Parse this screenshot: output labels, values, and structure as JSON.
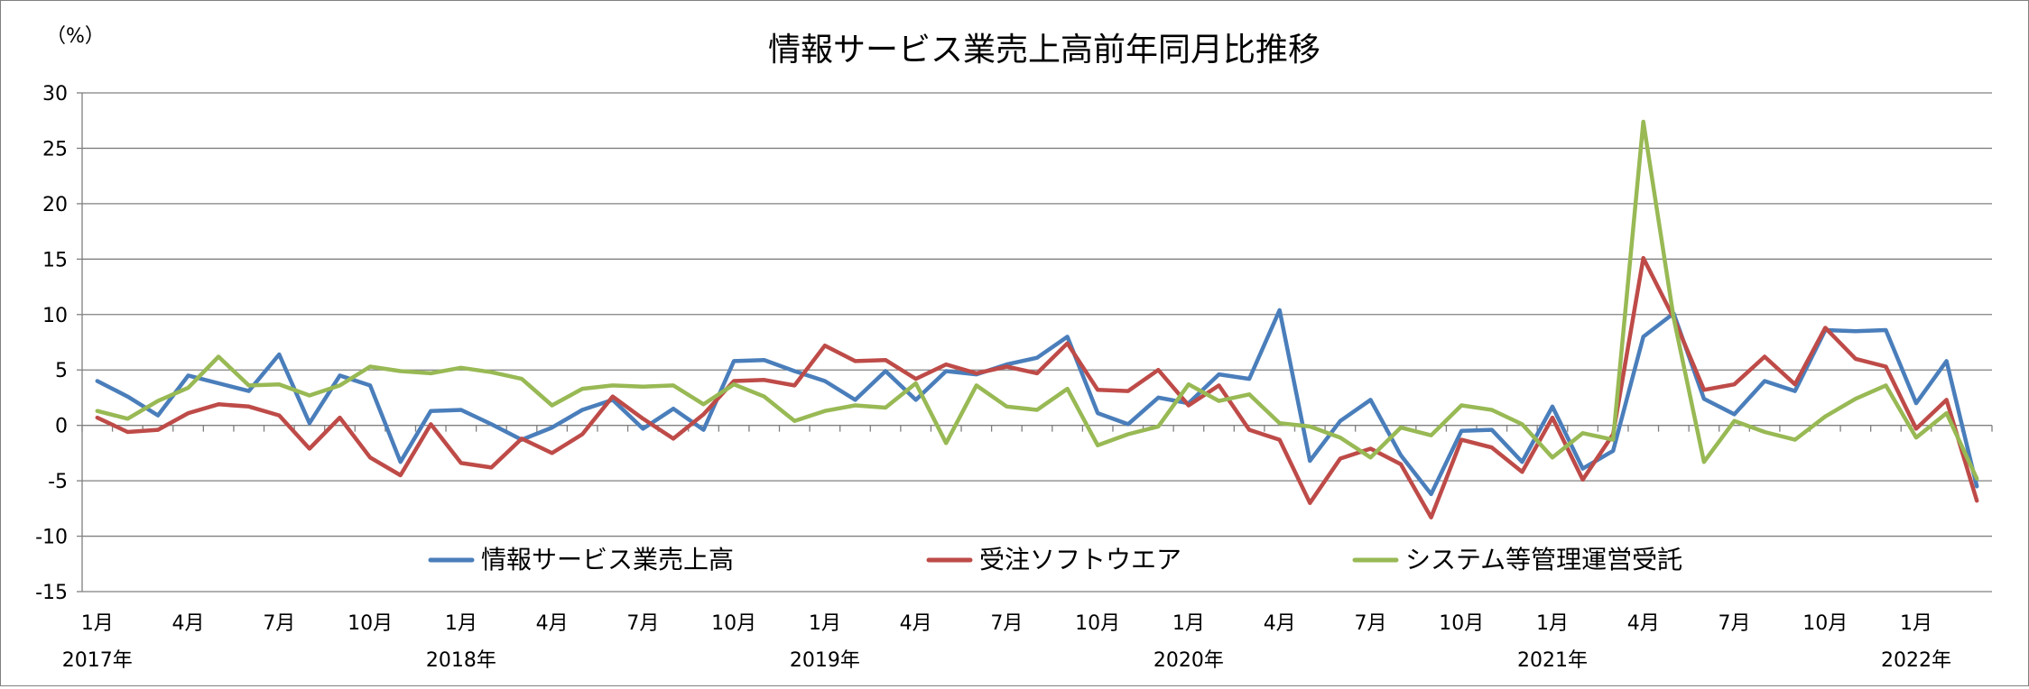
{
  "chart_data": {
    "type": "line",
    "title": "情報サービス業売上高前年同月比推移",
    "ylabel": "（%）",
    "xlabel": "",
    "ylim": [
      -15,
      30
    ],
    "yticks": [
      30,
      25,
      20,
      15,
      10,
      5,
      0,
      -5,
      -10,
      -15
    ],
    "grid": true,
    "legend_position": "bottom-inside",
    "x_month_labels": [
      {
        "i": 0,
        "label": "1月"
      },
      {
        "i": 3,
        "label": "4月"
      },
      {
        "i": 6,
        "label": "7月"
      },
      {
        "i": 9,
        "label": "10月"
      },
      {
        "i": 12,
        "label": "1月"
      },
      {
        "i": 15,
        "label": "4月"
      },
      {
        "i": 18,
        "label": "7月"
      },
      {
        "i": 21,
        "label": "10月"
      },
      {
        "i": 24,
        "label": "1月"
      },
      {
        "i": 27,
        "label": "4月"
      },
      {
        "i": 30,
        "label": "7月"
      },
      {
        "i": 33,
        "label": "10月"
      },
      {
        "i": 36,
        "label": "1月"
      },
      {
        "i": 39,
        "label": "4月"
      },
      {
        "i": 42,
        "label": "7月"
      },
      {
        "i": 45,
        "label": "10月"
      },
      {
        "i": 48,
        "label": "1月"
      },
      {
        "i": 51,
        "label": "4月"
      },
      {
        "i": 54,
        "label": "7月"
      },
      {
        "i": 57,
        "label": "10月"
      },
      {
        "i": 60,
        "label": "1月"
      }
    ],
    "x_year_labels": [
      {
        "i": 0,
        "label": "2017年"
      },
      {
        "i": 12,
        "label": "2018年"
      },
      {
        "i": 24,
        "label": "2019年"
      },
      {
        "i": 36,
        "label": "2020年"
      },
      {
        "i": 48,
        "label": "2021年"
      },
      {
        "i": 60,
        "label": "2022年"
      }
    ],
    "series": [
      {
        "name": "情報サービス業売上高",
        "color": "#4a7ebb",
        "values": [
          4.0,
          2.6,
          0.9,
          4.5,
          3.8,
          3.1,
          6.4,
          0.2,
          4.5,
          3.6,
          -3.3,
          1.3,
          1.4,
          0.1,
          -1.3,
          -0.2,
          1.4,
          2.3,
          -0.3,
          1.5,
          -0.4,
          5.8,
          5.9,
          4.9,
          4.0,
          2.3,
          4.9,
          2.3,
          4.9,
          4.6,
          5.5,
          6.1,
          8.0,
          1.1,
          0.1,
          2.5,
          2.0,
          4.6,
          4.2,
          10.4,
          -3.2,
          0.4,
          2.3,
          -2.7,
          -6.2,
          -0.5,
          -0.4,
          -3.3,
          1.7,
          -3.9,
          -2.3,
          8.0,
          10.1,
          2.4,
          1.0,
          4.0,
          3.1,
          8.6,
          8.5,
          8.6,
          2.0,
          5.8,
          -5.5
        ]
      },
      {
        "name": "受注ソフトウエア",
        "color": "#be4b48",
        "values": [
          0.7,
          -0.6,
          -0.4,
          1.1,
          1.9,
          1.7,
          0.9,
          -2.1,
          0.7,
          -2.9,
          -4.5,
          0.1,
          -3.4,
          -3.8,
          -1.2,
          -2.5,
          -0.8,
          2.6,
          0.6,
          -1.2,
          1.0,
          4.0,
          4.1,
          3.6,
          7.2,
          5.8,
          5.9,
          4.2,
          5.5,
          4.7,
          5.3,
          4.7,
          7.4,
          3.2,
          3.1,
          5.0,
          1.8,
          3.6,
          -0.4,
          -1.3,
          -7.0,
          -3.0,
          -2.1,
          -3.5,
          -8.3,
          -1.3,
          -2.0,
          -4.2,
          0.7,
          -4.9,
          -0.8,
          15.1,
          9.7,
          3.2,
          3.7,
          6.2,
          3.7,
          8.8,
          6.0,
          5.3,
          -0.3,
          2.3,
          -6.8
        ]
      },
      {
        "name": "システム等管理運営受託",
        "color": "#98b954",
        "values": [
          1.3,
          0.6,
          2.2,
          3.4,
          6.2,
          3.6,
          3.7,
          2.7,
          3.6,
          5.3,
          4.9,
          4.7,
          5.2,
          4.8,
          4.2,
          1.8,
          3.3,
          3.6,
          3.5,
          3.6,
          1.9,
          3.7,
          2.6,
          0.4,
          1.3,
          1.8,
          1.6,
          3.8,
          -1.6,
          3.6,
          1.7,
          1.4,
          3.3,
          -1.8,
          -0.8,
          -0.1,
          3.7,
          2.2,
          2.8,
          0.2,
          -0.1,
          -1.1,
          -2.9,
          -0.2,
          -0.9,
          1.8,
          1.4,
          0.1,
          -2.9,
          -0.7,
          -1.3,
          27.4,
          9.7,
          -3.3,
          0.4,
          -0.6,
          -1.3,
          0.8,
          2.4,
          3.6,
          -1.1,
          1.1,
          -4.8
        ]
      }
    ]
  }
}
